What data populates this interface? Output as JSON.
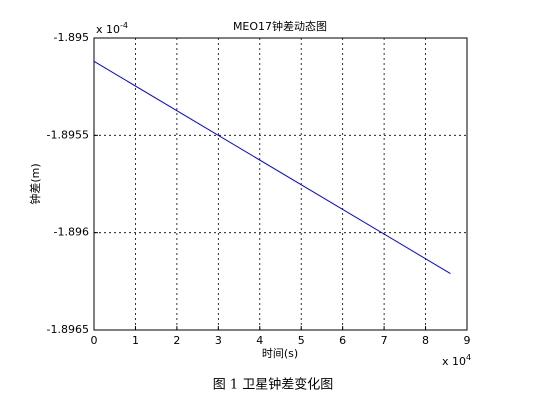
{
  "chart_data": {
    "type": "line",
    "title": "MEO17钟差动态图",
    "xlabel": "时间(s)",
    "ylabel": "钟差(m)",
    "x_multiplier": {
      "base": "x 10",
      "exponent": "4"
    },
    "y_multiplier": {
      "base": "x 10",
      "exponent": "-4"
    },
    "x": [
      0,
      8.6
    ],
    "series": [
      {
        "color": "#0000ff",
        "values": [
          -1.89512,
          -1.89621
        ]
      }
    ],
    "xlim": [
      0,
      9
    ],
    "xticks": [
      0,
      1,
      2,
      3,
      4,
      5,
      6,
      7,
      8,
      9
    ],
    "ylim": [
      -1.8965,
      -1.895
    ],
    "yticks": [
      -1.8965,
      -1.896,
      -1.8955,
      -1.895
    ],
    "grid": true
  },
  "caption": "图 1  卫星钟差变化图"
}
